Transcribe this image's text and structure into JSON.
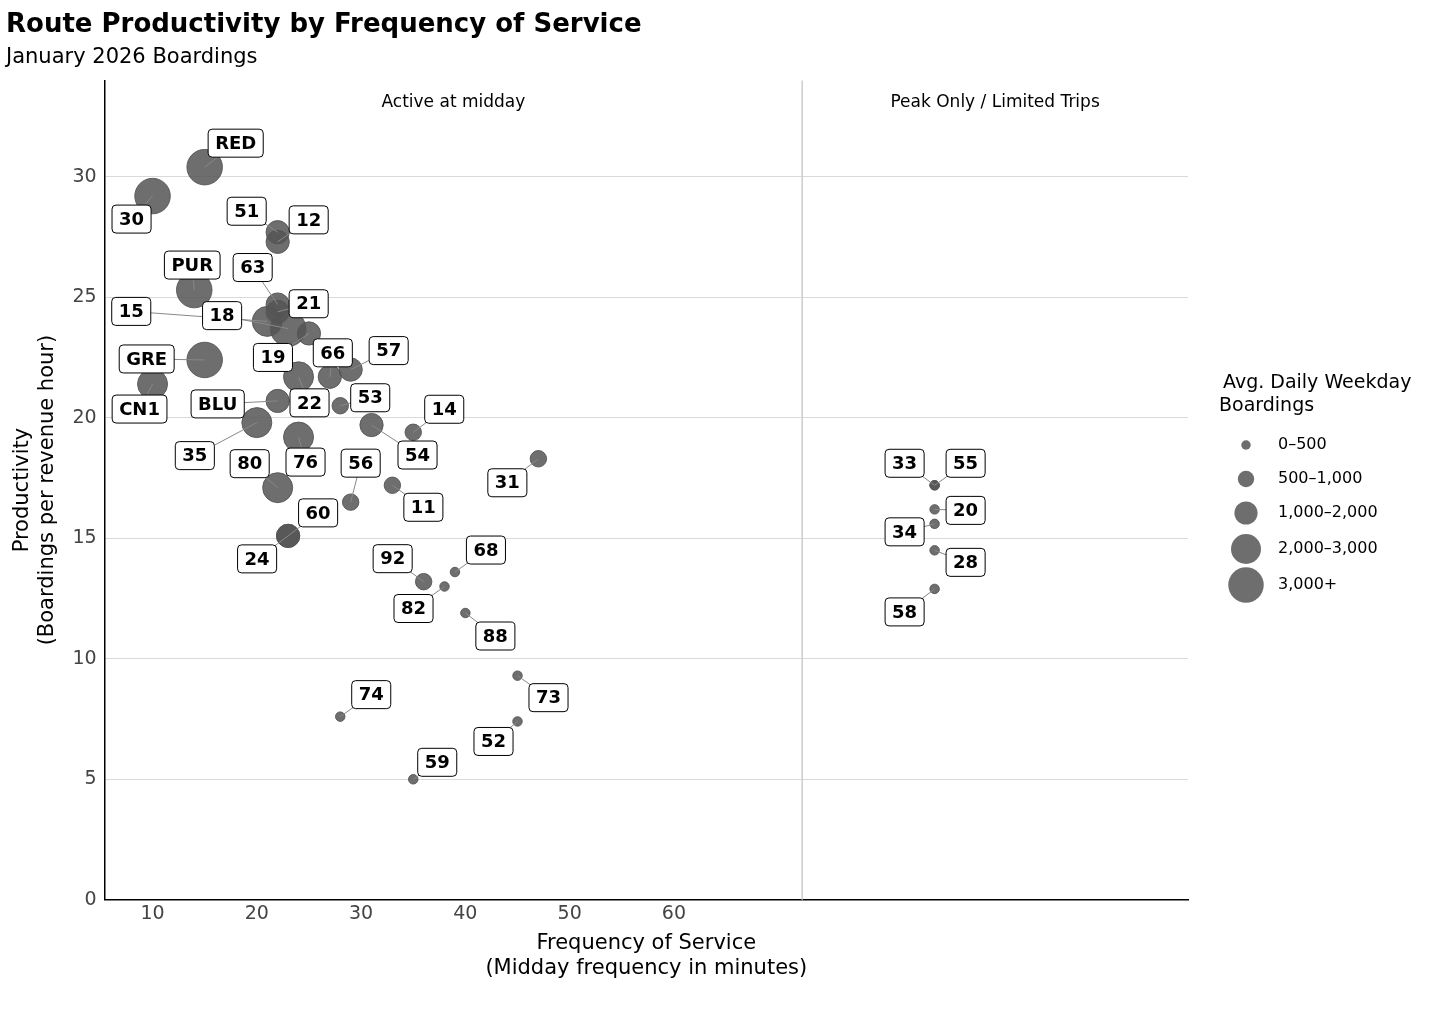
{
  "chart_data": {
    "type": "bubble",
    "title": "Route Productivity by Frequency of Service",
    "subtitle": "January 2026 Boardings",
    "xlabel": "Frequency of Service\n(Midday frequency in minutes)",
    "ylabel": "Productivity\n(Boardings per revenue hour)",
    "legend_title": "Avg. Daily Weekday Boardings",
    "xlim": [
      5.4,
      109.3
    ],
    "xticks": [
      10,
      20,
      30,
      40,
      50,
      60
    ],
    "ylim": [
      0,
      34
    ],
    "yticks": [
      0,
      5,
      10,
      15,
      20,
      25,
      30
    ],
    "grid": "y",
    "size_legend": [
      {
        "value": 250,
        "label": "0–500"
      },
      {
        "value": 750,
        "label": "500–1,000"
      },
      {
        "value": 1500,
        "label": "1,000–2,000"
      },
      {
        "value": 2500,
        "label": "2,000–3,000"
      },
      {
        "value": 3500,
        "label": "3,000+"
      }
    ],
    "ref_lines": [
      {
        "axis": "x",
        "value": 72.3,
        "color": "#cccccc"
      }
    ],
    "annotations": [
      "Active at midday",
      "Peak Only / Limited Trips",
      {
        "text": "RED",
        "x": 15,
        "y": 30.4
      },
      {
        "text": "30",
        "x": 10,
        "y": 29.2
      },
      {
        "text": "51",
        "x": 22,
        "y": 27.7
      },
      {
        "text": "12",
        "x": 22,
        "y": 27.3
      },
      {
        "text": "PUR",
        "x": 14,
        "y": 25.3
      },
      {
        "text": "63",
        "x": 22,
        "y": 24.7
      },
      {
        "text": "21",
        "x": 22,
        "y": 24.4
      },
      {
        "text": "15",
        "x": 21,
        "y": 24.0
      },
      {
        "text": "18",
        "x": 23,
        "y": 23.7
      },
      {
        "text": "19",
        "x": 25,
        "y": 23.5
      },
      {
        "text": "GRE",
        "x": 15,
        "y": 22.4
      },
      {
        "text": "66",
        "x": 27,
        "y": 21.7
      },
      {
        "text": "22",
        "x": 24,
        "y": 21.7
      },
      {
        "text": "57",
        "x": 29,
        "y": 22.0
      },
      {
        "text": "CN1",
        "x": 10,
        "y": 21.4
      },
      {
        "text": "BLU",
        "x": 22,
        "y": 20.7
      },
      {
        "text": "53",
        "x": 28,
        "y": 20.5
      },
      {
        "text": "14",
        "x": 35,
        "y": 19.4
      },
      {
        "text": "35",
        "x": 20,
        "y": 19.8
      },
      {
        "text": "76",
        "x": 24,
        "y": 19.2
      },
      {
        "text": "54",
        "x": 31,
        "y": 19.7
      },
      {
        "text": "80",
        "x": 22,
        "y": 17.1
      },
      {
        "text": "31",
        "x": 47,
        "y": 18.3
      },
      {
        "text": "11",
        "x": 33,
        "y": 17.2
      },
      {
        "text": "56",
        "x": 29,
        "y": 16.5
      },
      {
        "text": "60",
        "x": 23,
        "y": 15.1
      },
      {
        "text": "24",
        "x": 23,
        "y": 15.1
      },
      {
        "text": "68",
        "x": 39,
        "y": 13.6
      },
      {
        "text": "92",
        "x": 36,
        "y": 13.2
      },
      {
        "text": "82",
        "x": 38,
        "y": 13.0
      },
      {
        "text": "88",
        "x": 40,
        "y": 11.9
      },
      {
        "text": "73",
        "x": 45,
        "y": 9.3
      },
      {
        "text": "52",
        "x": 45,
        "y": 7.4
      },
      {
        "text": "74",
        "x": 28,
        "y": 7.6
      },
      {
        "text": "59",
        "x": 35,
        "y": 5.0
      },
      {
        "text": "33",
        "x": 85,
        "y": 17.2
      },
      {
        "text": "55",
        "x": 85,
        "y": 17.2
      },
      {
        "text": "20",
        "x": 85,
        "y": 16.2
      },
      {
        "text": "34",
        "x": 85,
        "y": 15.6
      },
      {
        "text": "28",
        "x": 85,
        "y": 14.5
      },
      {
        "text": "58",
        "x": 85,
        "y": 12.9
      }
    ],
    "series": [
      {
        "color": "#555555",
        "x": [
          15,
          10,
          22,
          22,
          14,
          22,
          22,
          21,
          23,
          25,
          15,
          27,
          24,
          29,
          10,
          22,
          28,
          35,
          20,
          24,
          31,
          22,
          47,
          33,
          29,
          23,
          23,
          39,
          36,
          38,
          40,
          45,
          45,
          28,
          35,
          85,
          85,
          85,
          85,
          85,
          85
        ],
        "values": [
          30.4,
          29.2,
          27.7,
          27.3,
          25.3,
          24.7,
          24.4,
          24.0,
          23.7,
          23.5,
          22.4,
          21.7,
          21.7,
          22.0,
          21.4,
          20.7,
          20.5,
          19.4,
          19.8,
          19.2,
          19.7,
          17.1,
          18.3,
          17.2,
          16.5,
          15.1,
          15.1,
          13.6,
          13.2,
          13.0,
          11.9,
          9.3,
          7.4,
          7.6,
          5.0,
          17.2,
          17.2,
          16.2,
          15.6,
          14.5,
          12.9
        ],
        "sizes": [
          3500,
          3500,
          1500,
          1500,
          3500,
          1500,
          1500,
          2500,
          3500,
          1500,
          3500,
          1500,
          2500,
          1500,
          2500,
          1500,
          750,
          750,
          2500,
          2500,
          1500,
          2500,
          750,
          750,
          750,
          1500,
          1500,
          250,
          750,
          250,
          250,
          250,
          250,
          250,
          250,
          250,
          250,
          250,
          250,
          250,
          250
        ]
      }
    ]
  }
}
